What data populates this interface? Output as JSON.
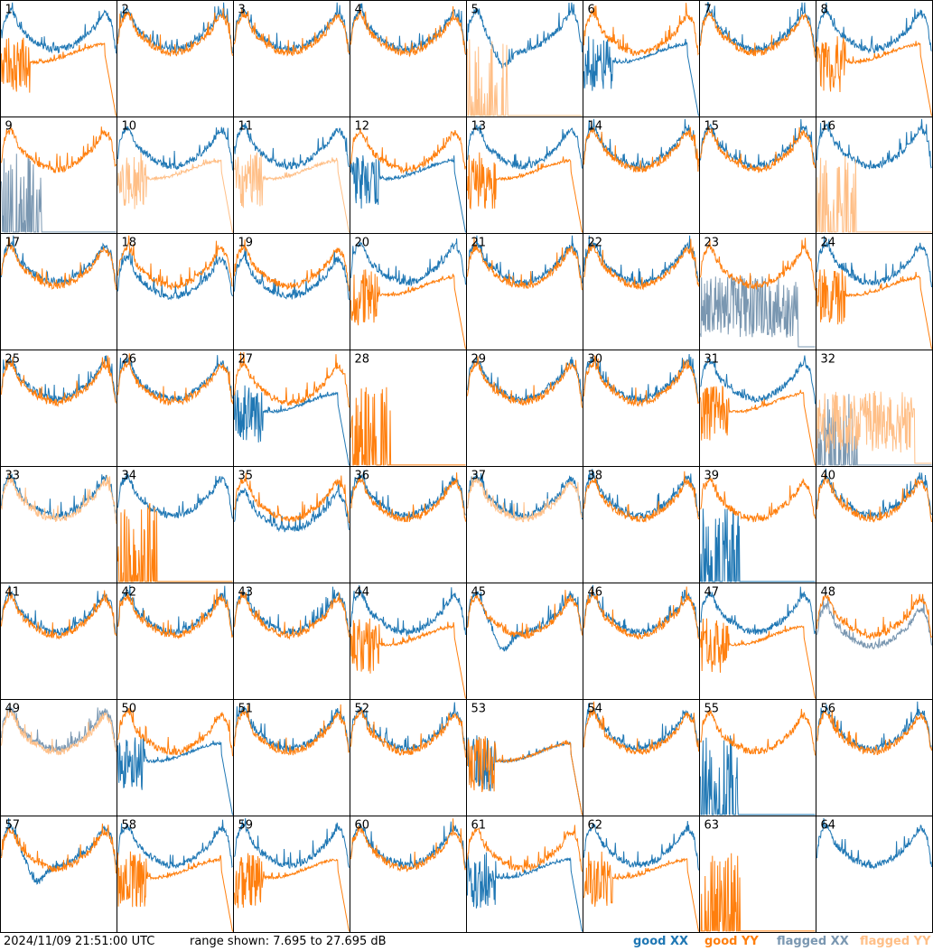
{
  "footer": {
    "timestamp": "2024/11/09 21:51:00 UTC",
    "range_text": "range shown: 7.695 to 27.695 dB",
    "legend": {
      "good_xx": "good XX",
      "good_yy": "good YY",
      "flagged_xx": "flagged XX",
      "flagged_yy": "flagged YY"
    }
  },
  "colors": {
    "good_xx": "#1f77b4",
    "good_yy": "#ff7f0e",
    "flagged_xx": "#7a97b1",
    "flagged_yy": "#ffbf87"
  },
  "chart_data": {
    "type": "line",
    "grid": {
      "rows": 8,
      "cols": 8
    },
    "ylim": [
      7.695,
      27.695
    ],
    "yunit": "dB",
    "series_names": [
      "good XX",
      "good YY",
      "flagged XX",
      "flagged YY"
    ],
    "panels": [
      {
        "id": 1,
        "xx": [
          "good",
          "normal"
        ],
        "yy": [
          "good",
          "dropout"
        ]
      },
      {
        "id": 2,
        "xx": [
          "good",
          "normal"
        ],
        "yy": [
          "good",
          "normal"
        ]
      },
      {
        "id": 3,
        "xx": [
          "good",
          "normal"
        ],
        "yy": [
          "good",
          "normal"
        ]
      },
      {
        "id": 4,
        "xx": [
          "good",
          "normal"
        ],
        "yy": [
          "good",
          "normal"
        ]
      },
      {
        "id": 5,
        "xx": [
          "good",
          "dip"
        ],
        "yy": [
          "flagged",
          "spiky_low"
        ]
      },
      {
        "id": 6,
        "xx": [
          "good",
          "dropout"
        ],
        "yy": [
          "good",
          "normal"
        ]
      },
      {
        "id": 7,
        "xx": [
          "good",
          "normal"
        ],
        "yy": [
          "good",
          "normal"
        ]
      },
      {
        "id": 8,
        "xx": [
          "good",
          "normal"
        ],
        "yy": [
          "good",
          "dropout"
        ]
      },
      {
        "id": 9,
        "xx": [
          "flagged",
          "spiky_low"
        ],
        "yy": [
          "good",
          "normal"
        ]
      },
      {
        "id": 10,
        "xx": [
          "good",
          "normal"
        ],
        "yy": [
          "flagged",
          "dropout"
        ]
      },
      {
        "id": 11,
        "xx": [
          "good",
          "normal"
        ],
        "yy": [
          "flagged",
          "dropout"
        ]
      },
      {
        "id": 12,
        "xx": [
          "good",
          "dropout"
        ],
        "yy": [
          "good",
          "normal"
        ]
      },
      {
        "id": 13,
        "xx": [
          "good",
          "normal"
        ],
        "yy": [
          "good",
          "dropout"
        ]
      },
      {
        "id": 14,
        "xx": [
          "good",
          "normal"
        ],
        "yy": [
          "good",
          "normal"
        ]
      },
      {
        "id": 15,
        "xx": [
          "good",
          "normal"
        ],
        "yy": [
          "good",
          "normal"
        ]
      },
      {
        "id": 16,
        "xx": [
          "good",
          "normal"
        ],
        "yy": [
          "flagged",
          "spiky_low"
        ]
      },
      {
        "id": 17,
        "xx": [
          "good",
          "normal"
        ],
        "yy": [
          "good",
          "normal"
        ]
      },
      {
        "id": 18,
        "xx": [
          "good",
          "low"
        ],
        "yy": [
          "good",
          "normal"
        ]
      },
      {
        "id": 19,
        "xx": [
          "good",
          "low"
        ],
        "yy": [
          "good",
          "normal"
        ]
      },
      {
        "id": 20,
        "xx": [
          "good",
          "normal"
        ],
        "yy": [
          "good",
          "dropout"
        ]
      },
      {
        "id": 21,
        "xx": [
          "good",
          "normal"
        ],
        "yy": [
          "good",
          "normal"
        ]
      },
      {
        "id": 22,
        "xx": [
          "good",
          "normal"
        ],
        "yy": [
          "good",
          "normal"
        ]
      },
      {
        "id": 23,
        "xx": [
          "flagged",
          "spiky_mid"
        ],
        "yy": [
          "good",
          "normal"
        ]
      },
      {
        "id": 24,
        "xx": [
          "good",
          "normal"
        ],
        "yy": [
          "good",
          "dropout"
        ]
      },
      {
        "id": 25,
        "xx": [
          "good",
          "normal"
        ],
        "yy": [
          "good",
          "normal"
        ]
      },
      {
        "id": 26,
        "xx": [
          "good",
          "normal"
        ],
        "yy": [
          "good",
          "normal"
        ]
      },
      {
        "id": 27,
        "xx": [
          "good",
          "dropout"
        ],
        "yy": [
          "good",
          "normal"
        ]
      },
      {
        "id": 28,
        "xx": [
          "good",
          "empty"
        ],
        "yy": [
          "good",
          "spiky_low"
        ]
      },
      {
        "id": 29,
        "xx": [
          "good",
          "normal"
        ],
        "yy": [
          "good",
          "normal"
        ]
      },
      {
        "id": 30,
        "xx": [
          "good",
          "normal"
        ],
        "yy": [
          "good",
          "normal"
        ]
      },
      {
        "id": 31,
        "xx": [
          "good",
          "normal"
        ],
        "yy": [
          "good",
          "dropout"
        ]
      },
      {
        "id": 32,
        "xx": [
          "flagged",
          "spiky_low"
        ],
        "yy": [
          "flagged",
          "spiky_mid"
        ]
      },
      {
        "id": 33,
        "xx": [
          "good",
          "normal"
        ],
        "yy": [
          "flagged",
          "normal"
        ]
      },
      {
        "id": 34,
        "xx": [
          "good",
          "normal"
        ],
        "yy": [
          "good",
          "spiky_low"
        ]
      },
      {
        "id": 35,
        "xx": [
          "good",
          "low"
        ],
        "yy": [
          "good",
          "normal"
        ]
      },
      {
        "id": 36,
        "xx": [
          "good",
          "normal"
        ],
        "yy": [
          "good",
          "normal"
        ]
      },
      {
        "id": 37,
        "xx": [
          "good",
          "normal"
        ],
        "yy": [
          "flagged",
          "normal"
        ]
      },
      {
        "id": 38,
        "xx": [
          "good",
          "normal"
        ],
        "yy": [
          "good",
          "normal"
        ]
      },
      {
        "id": 39,
        "xx": [
          "good",
          "spiky_low"
        ],
        "yy": [
          "good",
          "normal"
        ]
      },
      {
        "id": 40,
        "xx": [
          "good",
          "normal"
        ],
        "yy": [
          "good",
          "normal"
        ]
      },
      {
        "id": 41,
        "xx": [
          "good",
          "normal"
        ],
        "yy": [
          "good",
          "normal"
        ]
      },
      {
        "id": 42,
        "xx": [
          "good",
          "normal"
        ],
        "yy": [
          "good",
          "normal"
        ]
      },
      {
        "id": 43,
        "xx": [
          "good",
          "normal"
        ],
        "yy": [
          "good",
          "normal"
        ]
      },
      {
        "id": 44,
        "xx": [
          "good",
          "normal"
        ],
        "yy": [
          "good",
          "dropout"
        ]
      },
      {
        "id": 45,
        "xx": [
          "good",
          "dip"
        ],
        "yy": [
          "good",
          "normal"
        ]
      },
      {
        "id": 46,
        "xx": [
          "good",
          "normal"
        ],
        "yy": [
          "good",
          "normal"
        ]
      },
      {
        "id": 47,
        "xx": [
          "good",
          "normal"
        ],
        "yy": [
          "good",
          "dropout"
        ]
      },
      {
        "id": 48,
        "xx": [
          "flagged",
          "low"
        ],
        "yy": [
          "good",
          "normal"
        ]
      },
      {
        "id": 49,
        "xx": [
          "flagged",
          "normal"
        ],
        "yy": [
          "flagged",
          "normal"
        ]
      },
      {
        "id": 50,
        "xx": [
          "good",
          "dropout"
        ],
        "yy": [
          "good",
          "normal"
        ]
      },
      {
        "id": 51,
        "xx": [
          "good",
          "normal"
        ],
        "yy": [
          "good",
          "normal"
        ]
      },
      {
        "id": 52,
        "xx": [
          "good",
          "normal"
        ],
        "yy": [
          "good",
          "normal"
        ]
      },
      {
        "id": 53,
        "xx": [
          "good",
          "dropout"
        ],
        "yy": [
          "good",
          "dropout"
        ]
      },
      {
        "id": 54,
        "xx": [
          "good",
          "normal"
        ],
        "yy": [
          "good",
          "normal"
        ]
      },
      {
        "id": 55,
        "xx": [
          "good",
          "spiky_low"
        ],
        "yy": [
          "good",
          "normal"
        ]
      },
      {
        "id": 56,
        "xx": [
          "good",
          "normal"
        ],
        "yy": [
          "good",
          "normal"
        ]
      },
      {
        "id": 57,
        "xx": [
          "good",
          "dip"
        ],
        "yy": [
          "good",
          "normal"
        ]
      },
      {
        "id": 58,
        "xx": [
          "good",
          "normal"
        ],
        "yy": [
          "good",
          "dropout"
        ]
      },
      {
        "id": 59,
        "xx": [
          "good",
          "normal"
        ],
        "yy": [
          "good",
          "dropout"
        ]
      },
      {
        "id": 60,
        "xx": [
          "good",
          "normal"
        ],
        "yy": [
          "good",
          "normal"
        ]
      },
      {
        "id": 61,
        "xx": [
          "good",
          "dropout"
        ],
        "yy": [
          "good",
          "normal"
        ]
      },
      {
        "id": 62,
        "xx": [
          "good",
          "normal"
        ],
        "yy": [
          "good",
          "dropout"
        ]
      },
      {
        "id": 63,
        "xx": [
          "good",
          "empty"
        ],
        "yy": [
          "good",
          "spiky_low"
        ]
      },
      {
        "id": 64,
        "xx": [
          "good",
          "normal"
        ],
        "yy": [
          "flagged",
          "empty"
        ]
      }
    ]
  }
}
